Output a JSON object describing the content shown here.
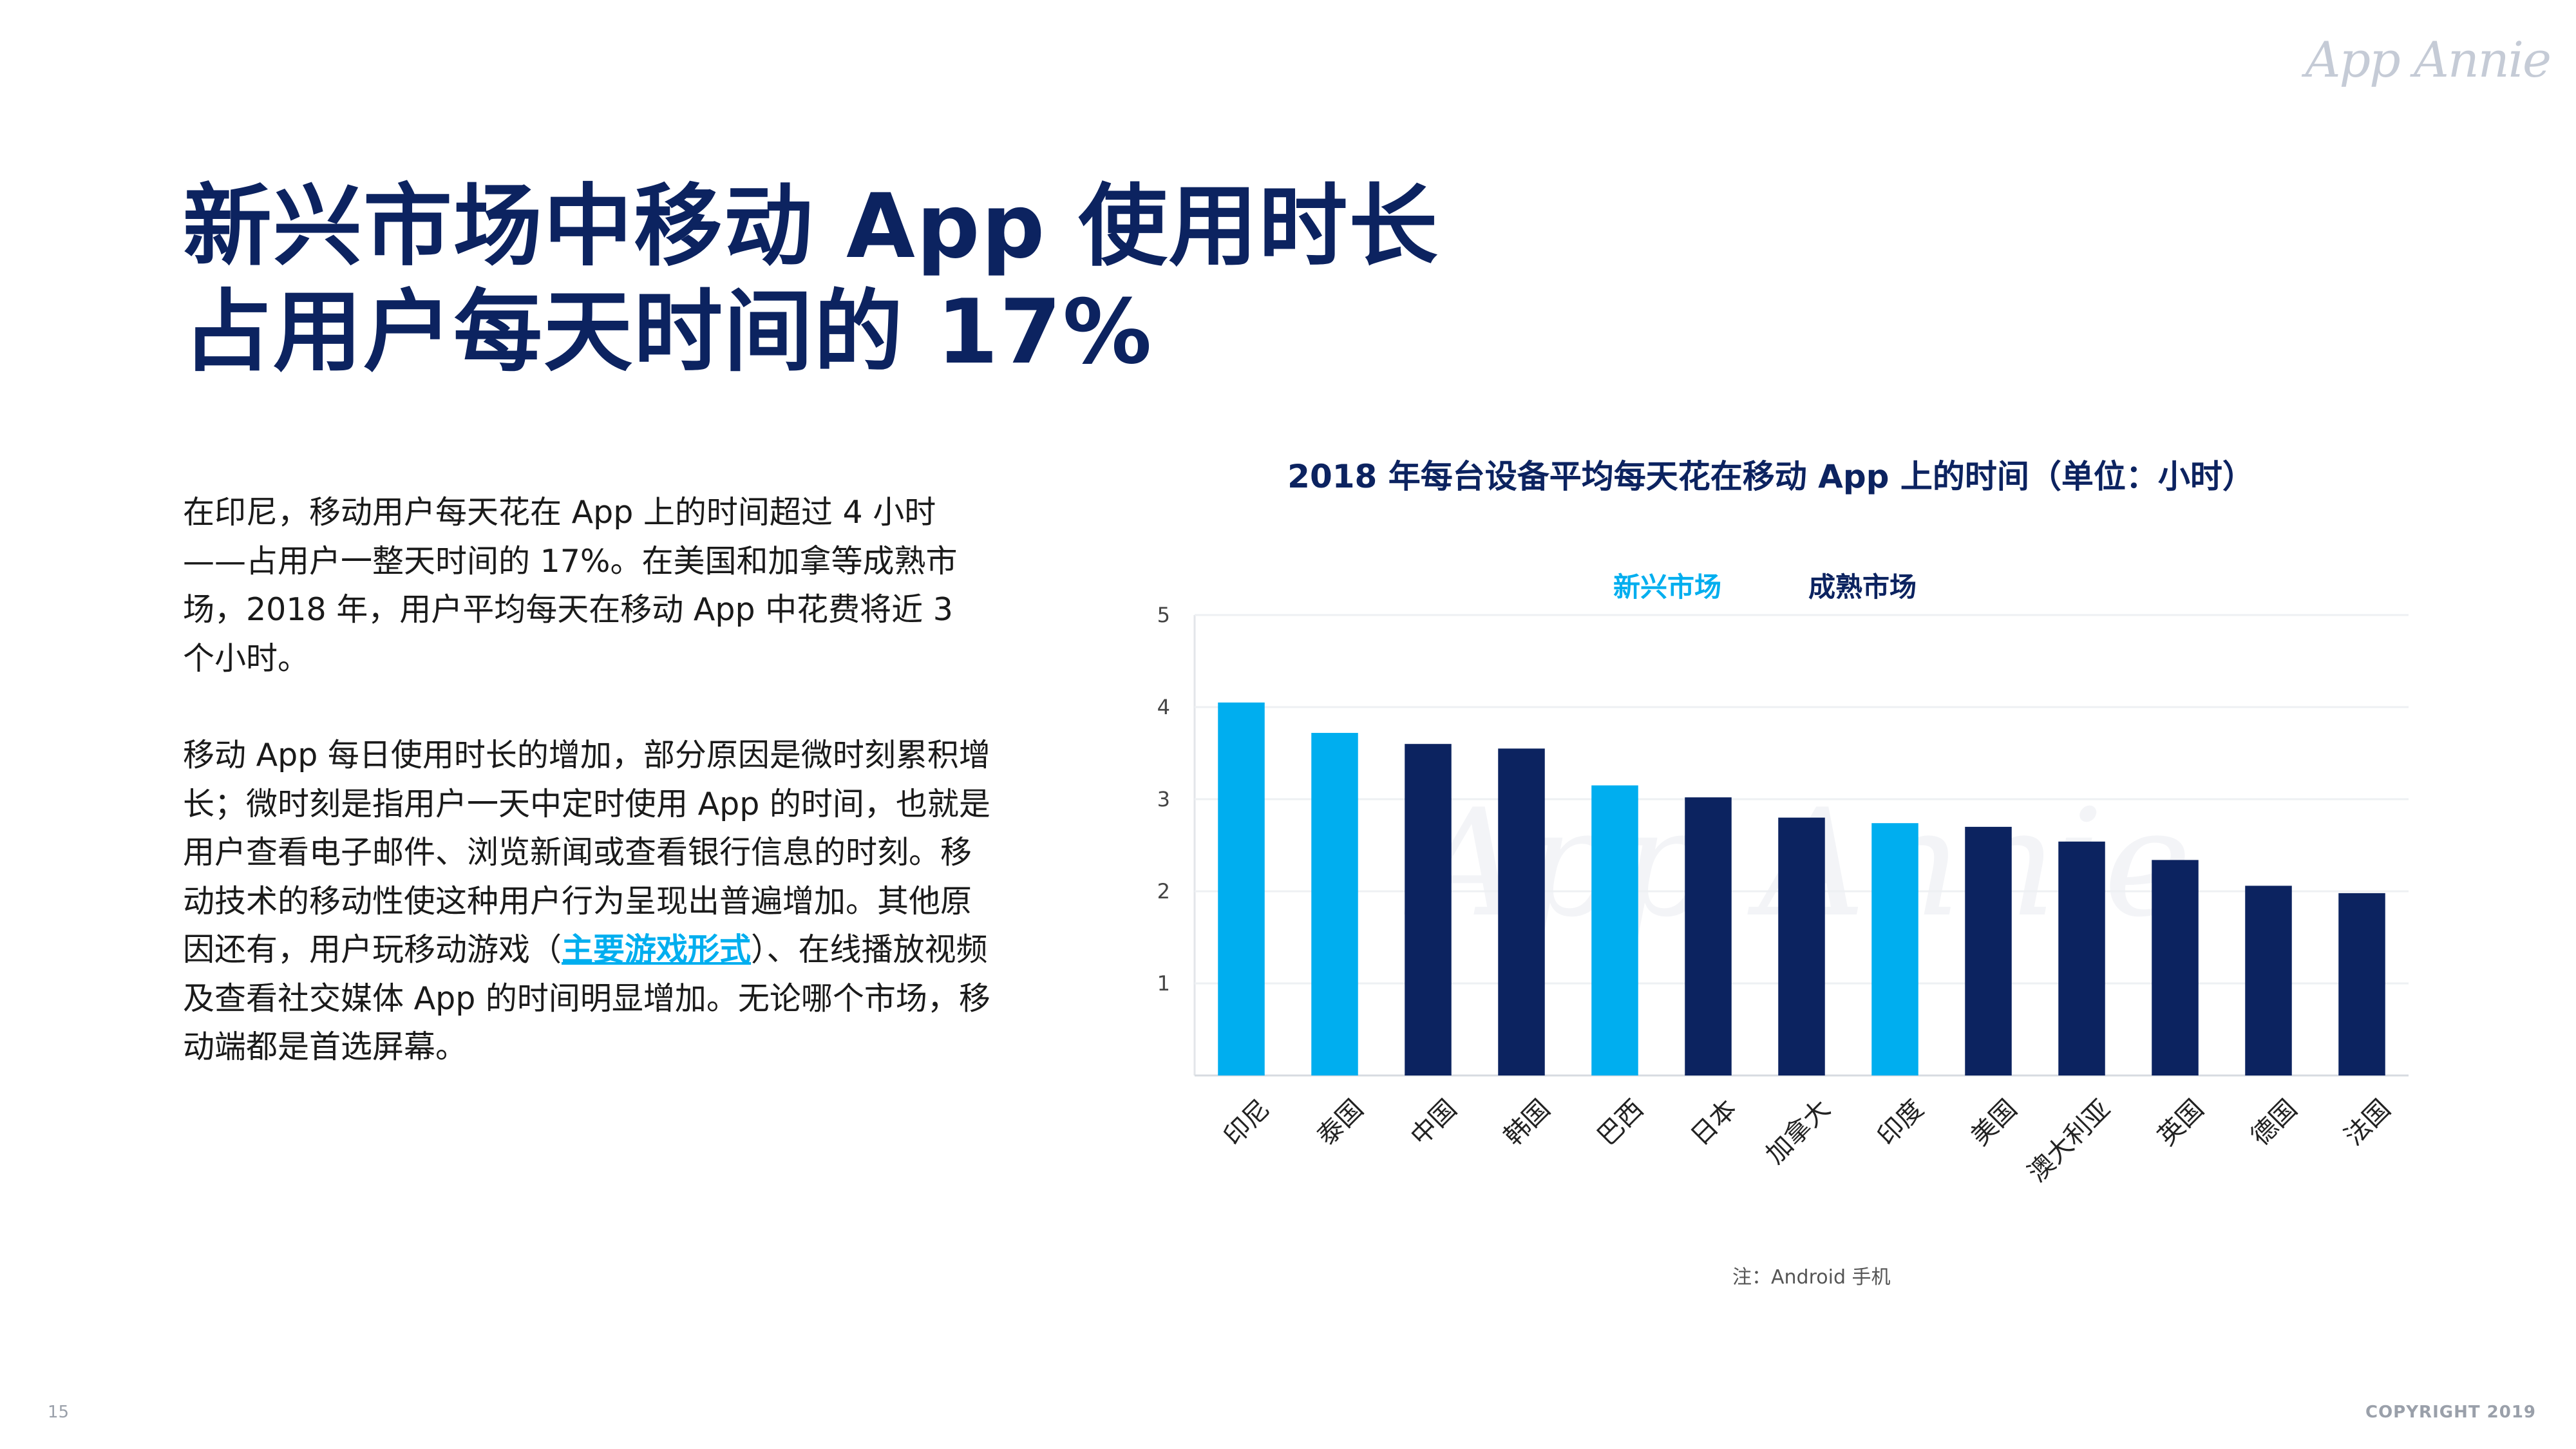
{
  "brand": {
    "logo": "App Annie"
  },
  "title": {
    "line1": "新兴市场中移动 App 使用时长",
    "line2": "占用户每天时间的 17%"
  },
  "body": {
    "p1": "在印尼，移动用户每天花在 App 上的时间超过 4 小时——占用户一整天时间的 17%。在美国和加拿等成熟市场，2018 年，用户平均每天在移动 App 中花费将近 3 个小时。",
    "p2_before": "移动 App 每日使用时长的增加，部分原因是微时刻累积增长；微时刻是指用户一天中定时使用 App 的时间，也就是用户查看电子邮件、浏览新闻或查看银行信息的时刻。移动技术的移动性使这种用户行为呈现出普遍增加。其他原因还有，用户玩移动游戏（",
    "p2_link": "主要游戏形式",
    "p2_after": "）、在线播放视频及查看社交媒体 App 的时间明显增加。无论哪个市场，移动端都是首选屏幕。"
  },
  "chart_data": {
    "type": "bar",
    "title": "2018 年每台设备平均每天花在移动 App 上的时间（单位：小时）",
    "legend": [
      {
        "key": "emerging",
        "label": "新兴市场",
        "color": "#00aeef"
      },
      {
        "key": "mature",
        "label": "成熟市场",
        "color": "#0c2360"
      }
    ],
    "categories": [
      "印尼",
      "泰国",
      "中国",
      "韩国",
      "巴西",
      "日本",
      "加拿大",
      "印度",
      "美国",
      "澳大利亚",
      "英国",
      "德国",
      "法国"
    ],
    "values": [
      4.05,
      3.72,
      3.6,
      3.55,
      3.15,
      3.02,
      2.8,
      2.74,
      2.7,
      2.54,
      2.34,
      2.06,
      1.98
    ],
    "groups": [
      "emerging",
      "emerging",
      "mature",
      "mature",
      "emerging",
      "mature",
      "mature",
      "emerging",
      "mature",
      "mature",
      "mature",
      "mature",
      "mature"
    ],
    "yticks": [
      1,
      2,
      3,
      4,
      5
    ],
    "ylim": [
      0,
      5
    ],
    "xlabel": "",
    "ylabel": "",
    "watermark": "App Annie"
  },
  "footer": {
    "note": "注：Android 手机",
    "page_number": "15",
    "copyright": "COPYRIGHT 2019"
  }
}
